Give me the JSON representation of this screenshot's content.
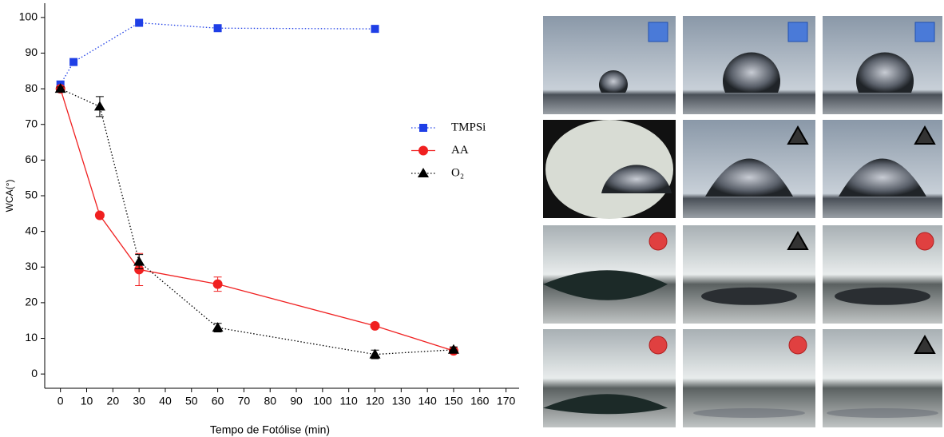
{
  "chart_data": {
    "type": "line",
    "xlabel": "Tempo de Fotólise (min)",
    "ylabel": "WCA(°)",
    "xlim": [
      -6,
      175
    ],
    "ylim": [
      -4,
      104
    ],
    "xticks": [
      0,
      10,
      20,
      30,
      40,
      50,
      60,
      70,
      80,
      90,
      100,
      110,
      120,
      130,
      140,
      150,
      160,
      170
    ],
    "yticks": [
      0,
      10,
      20,
      30,
      40,
      50,
      60,
      70,
      80,
      90,
      100
    ],
    "grid": false,
    "legend": "right",
    "series": [
      {
        "name": "TMPSi",
        "color": "#1f3fe6",
        "marker": "square",
        "linestyle": "dotted",
        "x": [
          0,
          5,
          30,
          60,
          120
        ],
        "values": [
          81.2,
          87.5,
          98.5,
          97,
          96.8
        ]
      },
      {
        "name": "AA",
        "color": "#f02020",
        "marker": "circle",
        "linestyle": "solid",
        "x": [
          0,
          15,
          30,
          60,
          120,
          150
        ],
        "values": [
          80,
          44.5,
          29.3,
          25.2,
          13.5,
          6.5
        ],
        "errors": [
          0.5,
          0.5,
          4.5,
          2,
          0.5,
          0.5
        ]
      },
      {
        "name": "O₂",
        "color": "#000000",
        "marker": "triangle",
        "linestyle": "dotted",
        "x": [
          0,
          15,
          30,
          60,
          120,
          150
        ],
        "values": [
          80,
          75,
          31.5,
          13,
          5.5,
          6.8
        ],
        "errors": [
          0.5,
          2.8,
          2,
          1.2,
          1.2,
          0.8
        ]
      }
    ]
  }
}
